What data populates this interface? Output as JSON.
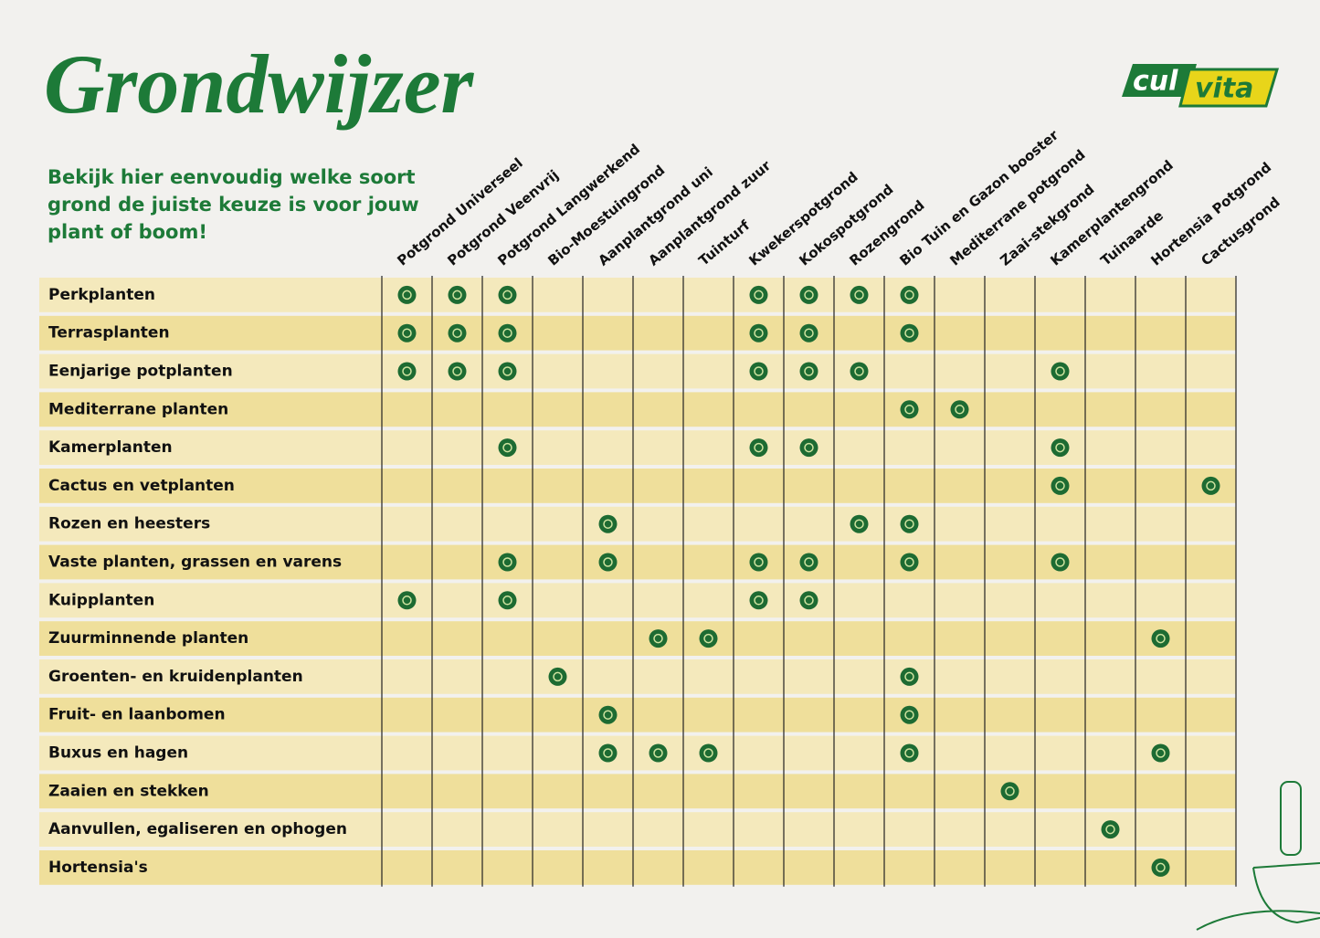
{
  "header": {
    "title": "Grondwijzer",
    "subtitle": [
      "Bekijk hier eenvoudig welke soort",
      "grond de juiste keuze is voor jouw",
      "plant of boom!"
    ],
    "logo": [
      "cul",
      "vita"
    ]
  },
  "table": {
    "columns": [
      "Potgrond Universeel",
      "Potgrond Veenvrij",
      "Potgrond Langwerkend",
      "Bio-Moestuingrond",
      "Aanplantgrond uni",
      "Aanplantgrond zuur",
      "Tuinturf",
      "Kwekerspotgrond",
      "Kokospotgrond",
      "Rozengrond",
      "Bio Tuin en Gazon booster",
      "Mediterrane potgrond",
      "Zaai-stekgrond",
      "Kamerplantengrond",
      "Tuinaarde",
      "Hortensia Potgrond",
      "Cactusgrond"
    ],
    "rows": [
      {
        "name": "Perkplanten",
        "cells": [
          true,
          true,
          true,
          false,
          false,
          false,
          false,
          true,
          true,
          true,
          true,
          false,
          false,
          false,
          false,
          false,
          false
        ]
      },
      {
        "name": "Terrasplanten",
        "cells": [
          true,
          true,
          true,
          false,
          false,
          false,
          false,
          true,
          true,
          false,
          true,
          false,
          false,
          false,
          false,
          false,
          false
        ]
      },
      {
        "name": "Eenjarige potplanten",
        "cells": [
          true,
          true,
          true,
          false,
          false,
          false,
          false,
          true,
          true,
          true,
          false,
          false,
          false,
          true,
          false,
          false,
          false
        ]
      },
      {
        "name": "Mediterrane planten",
        "cells": [
          false,
          false,
          false,
          false,
          false,
          false,
          false,
          false,
          false,
          false,
          true,
          true,
          false,
          false,
          false,
          false,
          false
        ]
      },
      {
        "name": "Kamerplanten",
        "cells": [
          false,
          false,
          true,
          false,
          false,
          false,
          false,
          true,
          true,
          false,
          false,
          false,
          false,
          true,
          false,
          false,
          false
        ]
      },
      {
        "name": "Cactus en vetplanten",
        "cells": [
          false,
          false,
          false,
          false,
          false,
          false,
          false,
          false,
          false,
          false,
          false,
          false,
          false,
          true,
          false,
          false,
          true
        ]
      },
      {
        "name": "Rozen en heesters",
        "cells": [
          false,
          false,
          false,
          false,
          true,
          false,
          false,
          false,
          false,
          true,
          true,
          false,
          false,
          false,
          false,
          false,
          false
        ]
      },
      {
        "name": "Vaste planten, grassen en varens",
        "cells": [
          false,
          false,
          true,
          false,
          true,
          false,
          false,
          true,
          true,
          false,
          true,
          false,
          false,
          true,
          false,
          false,
          false
        ]
      },
      {
        "name": "Kuipplanten",
        "cells": [
          true,
          false,
          true,
          false,
          false,
          false,
          false,
          true,
          true,
          false,
          false,
          false,
          false,
          false,
          false,
          false,
          false
        ]
      },
      {
        "name": "Zuurminnende planten",
        "cells": [
          false,
          false,
          false,
          false,
          false,
          true,
          true,
          false,
          false,
          false,
          false,
          false,
          false,
          false,
          false,
          true,
          false
        ]
      },
      {
        "name": "Groenten- en kruidenplanten",
        "cells": [
          false,
          false,
          false,
          true,
          false,
          false,
          false,
          false,
          false,
          false,
          true,
          false,
          false,
          false,
          false,
          false,
          false
        ]
      },
      {
        "name": "Fruit- en laanbomen",
        "cells": [
          false,
          false,
          false,
          false,
          true,
          false,
          false,
          false,
          false,
          false,
          true,
          false,
          false,
          false,
          false,
          false,
          false
        ]
      },
      {
        "name": "Buxus en hagen",
        "cells": [
          false,
          false,
          false,
          false,
          true,
          true,
          true,
          false,
          false,
          false,
          true,
          false,
          false,
          false,
          false,
          true,
          false
        ]
      },
      {
        "name": "Zaaien en stekken",
        "cells": [
          false,
          false,
          false,
          false,
          false,
          false,
          false,
          false,
          false,
          false,
          false,
          false,
          true,
          false,
          false,
          false,
          false
        ]
      },
      {
        "name": "Aanvullen, egaliseren en ophogen",
        "cells": [
          false,
          false,
          false,
          false,
          false,
          false,
          false,
          false,
          false,
          false,
          false,
          false,
          false,
          false,
          true,
          false,
          false
        ]
      },
      {
        "name": "Hortensia's",
        "cells": [
          false,
          false,
          false,
          false,
          false,
          false,
          false,
          false,
          false,
          false,
          false,
          false,
          false,
          false,
          false,
          true,
          false
        ]
      }
    ]
  }
}
